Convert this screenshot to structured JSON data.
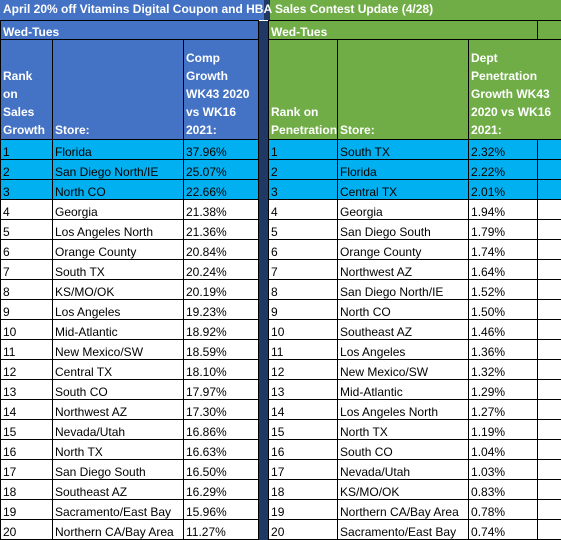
{
  "title": "April 20% off Vitamins Digital Coupon and HBA Sales Contest Update (4/28)",
  "left": {
    "period": "Wed-Tues",
    "headers": {
      "rank": "Rank on Sales Growth",
      "store": "Store:",
      "metric": "Comp Growth WK43 2020 vs WK16 2021:"
    },
    "rows": [
      [
        "1",
        "Florida",
        "37.96%"
      ],
      [
        "2",
        "San Diego North/IE",
        "25.07%"
      ],
      [
        "3",
        "North CO",
        "22.66%"
      ],
      [
        "4",
        "Georgia",
        "21.38%"
      ],
      [
        "5",
        "Los Angeles North",
        "21.36%"
      ],
      [
        "6",
        "Orange County",
        "20.84%"
      ],
      [
        "7",
        "South TX",
        "20.24%"
      ],
      [
        "8",
        "KS/MO/OK",
        "20.19%"
      ],
      [
        "9",
        "Los Angeles",
        "19.23%"
      ],
      [
        "10",
        "Mid-Atlantic",
        "18.92%"
      ],
      [
        "11",
        "New Mexico/SW",
        "18.59%"
      ],
      [
        "12",
        "Central TX",
        "18.10%"
      ],
      [
        "13",
        "South CO",
        "17.97%"
      ],
      [
        "14",
        "Northwest AZ",
        "17.30%"
      ],
      [
        "15",
        "Nevada/Utah",
        "16.86%"
      ],
      [
        "16",
        "North TX",
        "16.63%"
      ],
      [
        "17",
        "San Diego South",
        "16.50%"
      ],
      [
        "18",
        "Southeast AZ",
        "16.29%"
      ],
      [
        "19",
        "Sacramento/East Bay",
        "15.96%"
      ],
      [
        "20",
        "Northern CA/Bay Area",
        "11.27%"
      ]
    ]
  },
  "right": {
    "period": "Wed-Tues",
    "headers": {
      "rank": "Rank on Penetration:",
      "store": "Store:",
      "metric": "Dept Penetration Growth WK43 2020 vs WK16 2021:"
    },
    "rows": [
      [
        "1",
        "South TX",
        "2.32%"
      ],
      [
        "2",
        "Florida",
        "2.22%"
      ],
      [
        "3",
        "Central TX",
        "2.01%"
      ],
      [
        "4",
        "Georgia",
        "1.94%"
      ],
      [
        "5",
        "San Diego South",
        "1.79%"
      ],
      [
        "6",
        "Orange County",
        "1.74%"
      ],
      [
        "7",
        "Northwest AZ",
        "1.64%"
      ],
      [
        "8",
        "San Diego North/IE",
        "1.52%"
      ],
      [
        "9",
        "North CO",
        "1.50%"
      ],
      [
        "10",
        "Southeast AZ",
        "1.46%"
      ],
      [
        "11",
        "Los Angeles",
        "1.36%"
      ],
      [
        "12",
        "New Mexico/SW",
        "1.32%"
      ],
      [
        "13",
        "Mid-Atlantic",
        "1.29%"
      ],
      [
        "14",
        "Los Angeles North",
        "1.27%"
      ],
      [
        "15",
        "North TX",
        "1.19%"
      ],
      [
        "16",
        "South CO",
        "1.04%"
      ],
      [
        "17",
        "Nevada/Utah",
        "1.03%"
      ],
      [
        "18",
        "KS/MO/OK",
        "0.83%"
      ],
      [
        "19",
        "Northern CA/Bay Area",
        "0.78%"
      ],
      [
        "20",
        "Sacramento/East Bay",
        "0.74%"
      ]
    ]
  },
  "colors": {
    "blue_header": "#4472c4",
    "green_header": "#70ad47",
    "highlight": "#00b0f0",
    "separator": "#1f3864"
  }
}
